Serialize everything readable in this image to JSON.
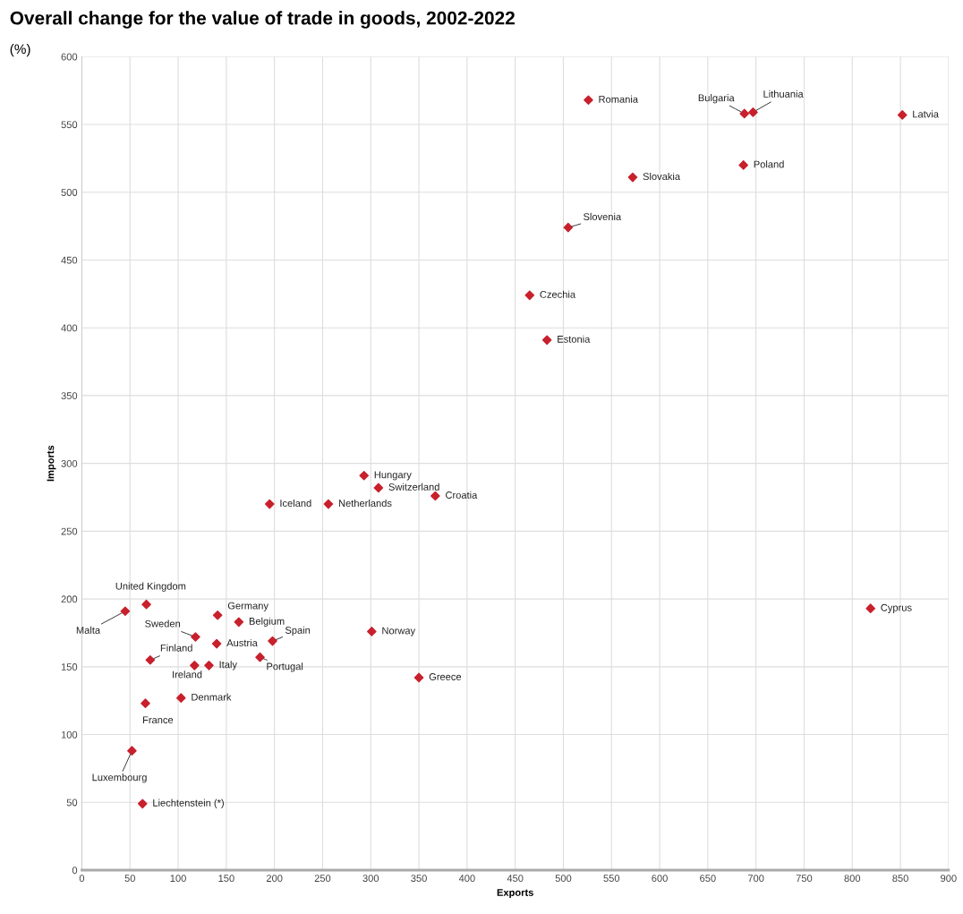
{
  "chart_data": {
    "type": "scatter",
    "title": "Overall change for the value of trade in goods, 2002-2022",
    "subtitle": "(%)",
    "xlabel": "Exports",
    "ylabel": "Imports",
    "x": [
      526,
      688,
      697,
      852,
      687,
      572,
      505,
      465,
      483,
      293,
      308,
      367,
      195,
      256,
      819,
      67,
      45,
      141,
      163,
      118,
      140,
      198,
      301,
      71,
      185,
      117,
      132,
      350,
      103,
      66,
      52,
      63
    ],
    "series": [
      {
        "color": "#c8202c",
        "values": [
          568,
          558,
          559,
          557,
          520,
          511,
          474,
          424,
          391,
          291,
          282,
          276,
          270,
          270,
          193,
          196,
          191,
          188,
          183,
          172,
          167,
          169,
          176,
          155,
          157,
          151,
          151,
          142,
          127,
          123,
          88,
          49
        ]
      }
    ],
    "annotations": [
      {
        "text": "Romania",
        "x": 526,
        "y": 568
      },
      {
        "text": "Bulgaria",
        "x": 688,
        "y": 558
      },
      {
        "text": "Lithuania",
        "x": 697,
        "y": 559
      },
      {
        "text": "Latvia",
        "x": 852,
        "y": 557
      },
      {
        "text": "Poland",
        "x": 687,
        "y": 520
      },
      {
        "text": "Slovakia",
        "x": 572,
        "y": 511
      },
      {
        "text": "Slovenia",
        "x": 505,
        "y": 474
      },
      {
        "text": "Czechia",
        "x": 465,
        "y": 424
      },
      {
        "text": "Estonia",
        "x": 483,
        "y": 391
      },
      {
        "text": "Hungary",
        "x": 293,
        "y": 291
      },
      {
        "text": "Switzerland",
        "x": 308,
        "y": 282
      },
      {
        "text": "Croatia",
        "x": 367,
        "y": 276
      },
      {
        "text": "Iceland",
        "x": 195,
        "y": 270
      },
      {
        "text": "Netherlands",
        "x": 256,
        "y": 270
      },
      {
        "text": "Cyprus",
        "x": 819,
        "y": 193
      },
      {
        "text": "United Kingdom",
        "x": 67,
        "y": 196
      },
      {
        "text": "Malta",
        "x": 45,
        "y": 191
      },
      {
        "text": "Germany",
        "x": 141,
        "y": 188
      },
      {
        "text": "Belgium",
        "x": 163,
        "y": 183
      },
      {
        "text": "Sweden",
        "x": 118,
        "y": 172
      },
      {
        "text": "Austria",
        "x": 140,
        "y": 167
      },
      {
        "text": "Spain",
        "x": 198,
        "y": 169
      },
      {
        "text": "Norway",
        "x": 301,
        "y": 176
      },
      {
        "text": "Finland",
        "x": 71,
        "y": 155
      },
      {
        "text": "Portugal",
        "x": 185,
        "y": 157
      },
      {
        "text": "Ireland",
        "x": 117,
        "y": 151
      },
      {
        "text": "Italy",
        "x": 132,
        "y": 151
      },
      {
        "text": "Greece",
        "x": 350,
        "y": 142
      },
      {
        "text": "Denmark",
        "x": 103,
        "y": 127
      },
      {
        "text": "France",
        "x": 66,
        "y": 123
      },
      {
        "text": "Luxembourg",
        "x": 52,
        "y": 88
      },
      {
        "text": "Liechtenstein (*)",
        "x": 63,
        "y": 49
      }
    ],
    "xlim": [
      0,
      900
    ],
    "xticks": [
      0,
      50,
      100,
      150,
      200,
      250,
      300,
      350,
      400,
      450,
      500,
      550,
      600,
      650,
      700,
      750,
      800,
      850,
      900
    ],
    "ylim": [
      0,
      600
    ],
    "yticks": [
      0,
      50,
      100,
      150,
      200,
      250,
      300,
      350,
      400,
      450,
      500,
      550,
      600
    ],
    "grid": true,
    "marker": "diamond"
  }
}
